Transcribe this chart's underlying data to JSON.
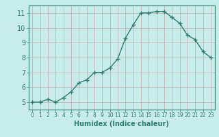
{
  "x": [
    0,
    1,
    2,
    3,
    4,
    5,
    6,
    7,
    8,
    9,
    10,
    11,
    12,
    13,
    14,
    15,
    16,
    17,
    18,
    19,
    20,
    21,
    22,
    23
  ],
  "y": [
    5.0,
    5.0,
    5.2,
    5.0,
    5.3,
    5.7,
    6.3,
    6.5,
    7.0,
    7.0,
    7.3,
    7.9,
    9.3,
    10.2,
    11.0,
    11.0,
    11.1,
    11.1,
    10.7,
    10.3,
    9.5,
    9.2,
    8.4,
    8.0
  ],
  "bg_color": "#c8ecea",
  "line_color": "#2e7d6e",
  "marker_color": "#2e7d6e",
  "grid_color": "#c0a8a8",
  "xlabel": "Humidex (Indice chaleur)",
  "xlabel_fontsize": 7,
  "xlim": [
    -0.5,
    23.5
  ],
  "ylim": [
    4.5,
    11.5
  ],
  "yticks": [
    5,
    6,
    7,
    8,
    9,
    10,
    11
  ],
  "xticks": [
    0,
    1,
    2,
    3,
    4,
    5,
    6,
    7,
    8,
    9,
    10,
    11,
    12,
    13,
    14,
    15,
    16,
    17,
    18,
    19,
    20,
    21,
    22,
    23
  ],
  "line_width": 1.0,
  "marker_size": 4.0
}
